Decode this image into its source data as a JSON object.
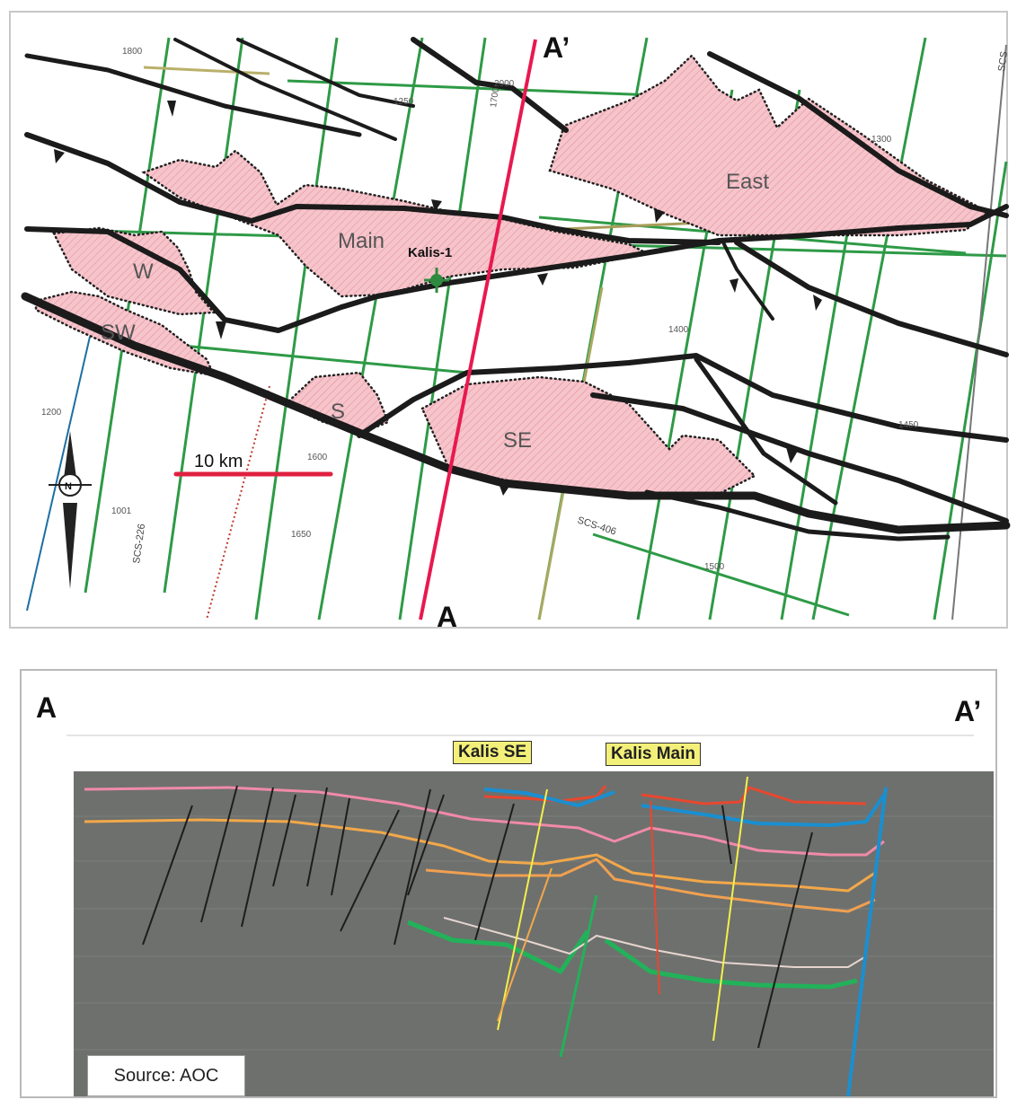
{
  "map": {
    "section_start_label": "A",
    "section_end_label": "A’",
    "well_label": "Kalis-1",
    "scale_label": "10 km",
    "prospects": [
      {
        "label": "Main"
      },
      {
        "label": "East"
      },
      {
        "label": "W"
      },
      {
        "label": "SW"
      },
      {
        "label": "S"
      },
      {
        "label": "SE"
      }
    ],
    "seismic_line_labels": [
      "SCS-226",
      "SCS-406",
      "SCS"
    ],
    "contour_labels": [
      "1800",
      "1700",
      "2000",
      "1250",
      "1001",
      "1200",
      "1600",
      "1400",
      "1500",
      "1300",
      "1650",
      "1450"
    ],
    "north_arrow": "N",
    "colors": {
      "section_line": "#e8194f",
      "fault": "#1b1b1b",
      "prospect_fill": "#f4b7bf",
      "seismic_green": "#2e9a46",
      "scale_bar": "#e02040"
    }
  },
  "section": {
    "start_label": "A",
    "end_label": "A’",
    "well_tags": [
      "Kalis SE",
      "Kalis Main"
    ],
    "source": "Source: AOC",
    "colors": {
      "background": "#6e706d",
      "horizon_pink": "#f08aa8",
      "horizon_orange": "#f2a84a",
      "horizon_red": "#e8472f",
      "horizon_blue": "#1a8fd0",
      "horizon_green": "#22b25a",
      "fault": "#1d1d1d",
      "well": "#f5ef4a"
    }
  }
}
